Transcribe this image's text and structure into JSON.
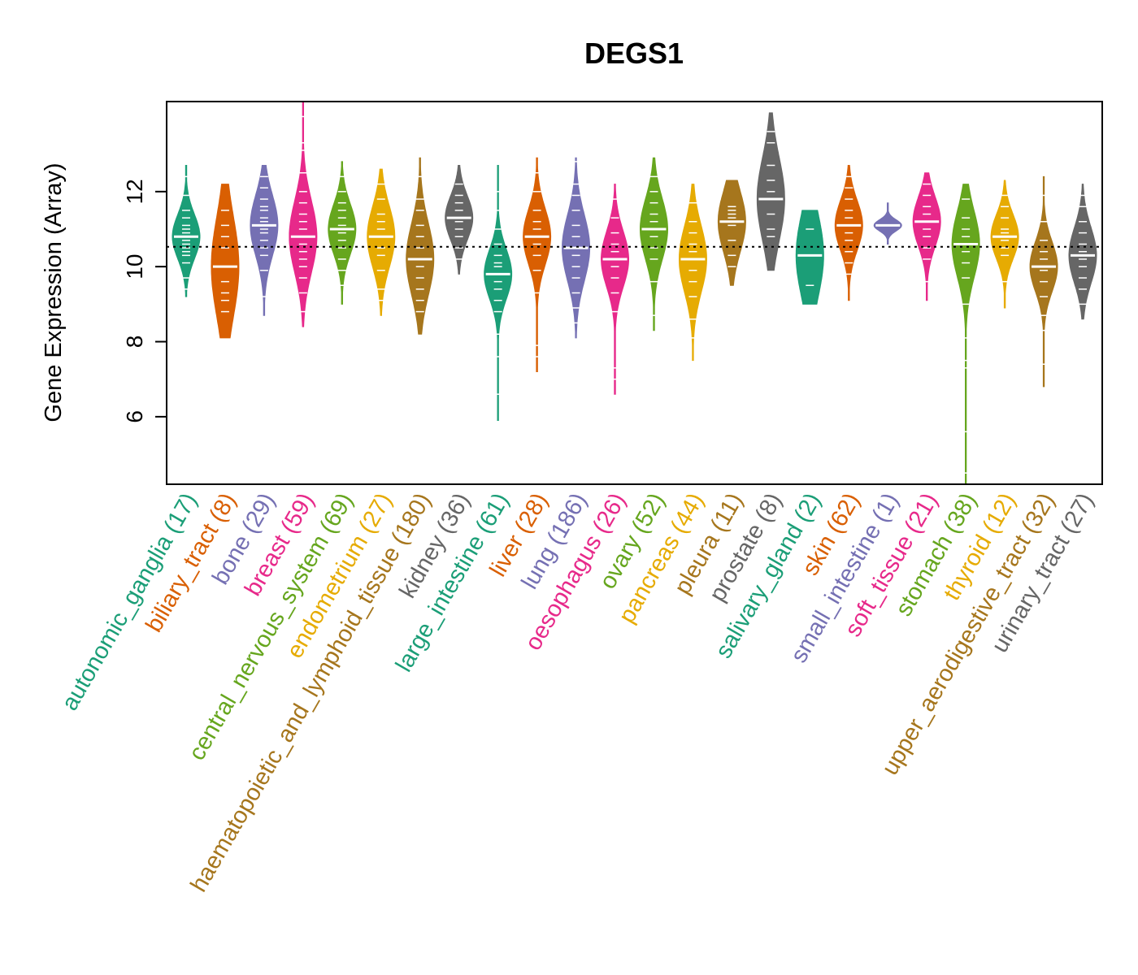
{
  "chart_data": {
    "type": "violin",
    "title": "DEGS1",
    "ylabel": "Gene Expression (Array)",
    "xlabel": "",
    "ylim": [
      4.2,
      14.4
    ],
    "yticks": [
      6,
      8,
      10,
      12
    ],
    "reference_line": 10.53,
    "grid": false,
    "series": [
      {
        "name": "autonomic_ganglia",
        "count": 17,
        "label": "autonomic_ganglia (17)",
        "color": "#1B9E77",
        "min": 9.2,
        "q1": 10.4,
        "median": 10.8,
        "q3": 11.2,
        "max": 12.7,
        "points": [
          9.4,
          9.7,
          10.1,
          10.3,
          10.4,
          10.5,
          10.6,
          10.7,
          10.8,
          10.8,
          10.9,
          11.0,
          11.1,
          11.3,
          11.5,
          11.9,
          12.4
        ]
      },
      {
        "name": "biliary_tract",
        "count": 8,
        "label": "biliary_tract (8)",
        "color": "#D95F02",
        "min": 8.1,
        "q1": 9.0,
        "median": 10.0,
        "q3": 10.8,
        "max": 12.2,
        "points": [
          8.8,
          9.1,
          9.3,
          9.6,
          10.5,
          10.8,
          11.1,
          11.5
        ]
      },
      {
        "name": "bone",
        "count": 29,
        "label": "bone (29)",
        "color": "#7570B3",
        "min": 8.7,
        "q1": 10.5,
        "median": 11.1,
        "q3": 11.6,
        "max": 12.7,
        "points": [
          9.2,
          9.9,
          10.3,
          10.5,
          10.7,
          10.9,
          11.0,
          11.1,
          11.2,
          11.3,
          11.5,
          11.6,
          11.8,
          12.1,
          12.4
        ]
      },
      {
        "name": "breast",
        "count": 59,
        "label": "breast (59)",
        "color": "#E7298A",
        "min": 8.4,
        "q1": 10.2,
        "median": 10.8,
        "q3": 11.5,
        "max": 14.4,
        "points": [
          8.8,
          9.3,
          9.7,
          10.0,
          10.2,
          10.4,
          10.6,
          10.8,
          11.0,
          11.2,
          11.4,
          11.7,
          12.0,
          12.5,
          13.1,
          13.3,
          14.0
        ]
      },
      {
        "name": "central_nervous_system",
        "count": 69,
        "label": "central_nervous_system (69)",
        "color": "#66A61E",
        "min": 9.0,
        "q1": 10.6,
        "median": 11.0,
        "q3": 11.5,
        "max": 12.8,
        "points": [
          9.5,
          9.9,
          10.2,
          10.5,
          10.7,
          10.9,
          11.0,
          11.1,
          11.3,
          11.5,
          11.7,
          12.0,
          12.4
        ]
      },
      {
        "name": "endometrium",
        "count": 27,
        "label": "endometrium (27)",
        "color": "#E6AB02",
        "min": 8.7,
        "q1": 10.3,
        "median": 10.8,
        "q3": 11.4,
        "max": 12.6,
        "points": [
          9.1,
          9.4,
          9.9,
          10.3,
          10.5,
          10.8,
          11.0,
          11.2,
          11.4,
          11.8,
          12.2
        ]
      },
      {
        "name": "haematopoietic_and_lymphoid_tissue",
        "count": 180,
        "label": "haematopoietic_and_lymphoid_tissue (180)",
        "color": "#A6761D",
        "min": 8.2,
        "q1": 9.6,
        "median": 10.2,
        "q3": 10.9,
        "max": 12.9,
        "points": [
          8.8,
          9.1,
          9.4,
          9.7,
          10.0,
          10.2,
          10.5,
          10.8,
          11.1,
          11.5,
          11.8,
          12.4
        ]
      },
      {
        "name": "kidney",
        "count": 36,
        "label": "kidney (36)",
        "color": "#666666",
        "min": 9.8,
        "q1": 10.9,
        "median": 11.3,
        "q3": 11.7,
        "max": 12.7,
        "points": [
          10.2,
          10.5,
          10.8,
          11.0,
          11.2,
          11.3,
          11.5,
          11.7,
          11.9,
          12.2
        ]
      },
      {
        "name": "large_intestine",
        "count": 61,
        "label": "large_intestine (61)",
        "color": "#1B9E77",
        "min": 5.9,
        "q1": 9.3,
        "median": 9.8,
        "q3": 10.2,
        "max": 12.7,
        "points": [
          6.6,
          7.6,
          8.2,
          8.8,
          9.1,
          9.4,
          9.6,
          9.8,
          10.0,
          10.1,
          10.3,
          10.6,
          11.0,
          11.5,
          12.0
        ]
      },
      {
        "name": "liver",
        "count": 28,
        "label": "liver (28)",
        "color": "#D95F02",
        "min": 7.2,
        "q1": 10.3,
        "median": 10.8,
        "q3": 11.3,
        "max": 12.9,
        "points": [
          7.6,
          7.9,
          9.3,
          9.9,
          10.3,
          10.6,
          10.8,
          11.0,
          11.2,
          11.5,
          12.0,
          12.5
        ]
      },
      {
        "name": "lung",
        "count": 186,
        "label": "lung (186)",
        "color": "#7570B3",
        "min": 8.1,
        "q1": 9.9,
        "median": 10.5,
        "q3": 11.1,
        "max": 12.9,
        "points": [
          8.5,
          8.9,
          9.3,
          9.7,
          10.0,
          10.3,
          10.5,
          10.8,
          11.1,
          11.5,
          11.9,
          12.2,
          12.8
        ]
      },
      {
        "name": "oesophagus",
        "count": 26,
        "label": "oesophagus (26)",
        "color": "#E7298A",
        "min": 6.6,
        "q1": 9.7,
        "median": 10.2,
        "q3": 10.7,
        "max": 12.2,
        "points": [
          7.0,
          7.3,
          8.8,
          9.3,
          9.7,
          10.0,
          10.2,
          10.4,
          10.6,
          10.9,
          11.3,
          11.8
        ]
      },
      {
        "name": "ovary",
        "count": 52,
        "label": "ovary (52)",
        "color": "#66A61E",
        "min": 8.3,
        "q1": 10.5,
        "median": 11.0,
        "q3": 11.6,
        "max": 12.9,
        "points": [
          8.7,
          9.6,
          10.2,
          10.5,
          10.8,
          11.0,
          11.2,
          11.4,
          11.7,
          12.0,
          12.4
        ]
      },
      {
        "name": "pancreas",
        "count": 44,
        "label": "pancreas (44)",
        "color": "#E6AB02",
        "min": 7.5,
        "q1": 9.6,
        "median": 10.2,
        "q3": 10.8,
        "max": 12.2,
        "points": [
          8.1,
          8.6,
          9.2,
          9.6,
          9.9,
          10.2,
          10.4,
          10.6,
          10.9,
          11.2,
          11.7
        ]
      },
      {
        "name": "pleura",
        "count": 11,
        "label": "pleura (11)",
        "color": "#A6761D",
        "min": 9.5,
        "q1": 10.4,
        "median": 11.2,
        "q3": 11.5,
        "max": 12.3,
        "points": [
          10.0,
          10.3,
          10.7,
          11.1,
          11.3,
          11.4,
          11.5,
          11.6
        ]
      },
      {
        "name": "prostate",
        "count": 8,
        "label": "prostate (8)",
        "color": "#666666",
        "min": 9.9,
        "q1": 10.9,
        "median": 11.8,
        "q3": 12.4,
        "max": 14.1,
        "points": [
          10.8,
          11.0,
          11.4,
          12.0,
          12.3,
          12.7,
          13.3,
          13.6
        ]
      },
      {
        "name": "salivary_gland",
        "count": 2,
        "label": "salivary_gland (2)",
        "color": "#1B9E77",
        "min": 9.0,
        "q1": 9.5,
        "median": 10.3,
        "q3": 11.0,
        "max": 11.5,
        "points": [
          9.5,
          11.0
        ]
      },
      {
        "name": "skin",
        "count": 62,
        "label": "skin (62)",
        "color": "#D95F02",
        "min": 9.1,
        "q1": 10.6,
        "median": 11.1,
        "q3": 11.5,
        "max": 12.7,
        "points": [
          9.8,
          10.1,
          10.4,
          10.7,
          10.9,
          11.1,
          11.3,
          11.5,
          11.8,
          12.1,
          12.4
        ]
      },
      {
        "name": "small_intestine",
        "count": 1,
        "label": "small_intestine (1)",
        "color": "#7570B3",
        "min": 10.6,
        "q1": 11.1,
        "median": 11.1,
        "q3": 11.1,
        "max": 11.7,
        "points": [
          11.1
        ]
      },
      {
        "name": "soft_tissue",
        "count": 21,
        "label": "soft_tissue (21)",
        "color": "#E7298A",
        "min": 9.1,
        "q1": 10.7,
        "median": 11.2,
        "q3": 11.6,
        "max": 12.5,
        "points": [
          9.6,
          10.2,
          10.5,
          10.8,
          11.0,
          11.2,
          11.4,
          11.6,
          11.9,
          12.2
        ]
      },
      {
        "name": "stomach",
        "count": 38,
        "label": "stomach (38)",
        "color": "#66A61E",
        "min": 4.2,
        "q1": 9.8,
        "median": 10.6,
        "q3": 11.0,
        "max": 12.2,
        "points": [
          4.5,
          5.6,
          7.3,
          7.5,
          8.1,
          9.0,
          9.7,
          10.1,
          10.4,
          10.6,
          10.8,
          11.0,
          11.3,
          11.8
        ]
      },
      {
        "name": "thyroid",
        "count": 12,
        "label": "thyroid (12)",
        "color": "#E6AB02",
        "min": 8.9,
        "q1": 10.4,
        "median": 10.8,
        "q3": 11.2,
        "max": 12.3,
        "points": [
          9.6,
          10.3,
          10.5,
          10.7,
          10.8,
          10.9,
          11.0,
          11.3,
          11.6,
          11.9
        ]
      },
      {
        "name": "upper_aerodigestive_tract",
        "count": 32,
        "label": "upper_aerodigestive_tract (32)",
        "color": "#A6761D",
        "min": 6.8,
        "q1": 9.6,
        "median": 10.0,
        "q3": 10.5,
        "max": 12.4,
        "points": [
          7.4,
          8.3,
          8.7,
          9.2,
          9.6,
          9.9,
          10.0,
          10.2,
          10.4,
          10.7,
          11.2,
          11.9
        ]
      },
      {
        "name": "urinary_tract",
        "count": 27,
        "label": "urinary_tract (27)",
        "color": "#666666",
        "min": 8.6,
        "q1": 9.8,
        "median": 10.3,
        "q3": 10.8,
        "max": 12.2,
        "points": [
          9.0,
          9.4,
          9.7,
          10.0,
          10.2,
          10.4,
          10.6,
          10.9,
          11.2,
          11.6,
          11.9
        ]
      }
    ]
  }
}
